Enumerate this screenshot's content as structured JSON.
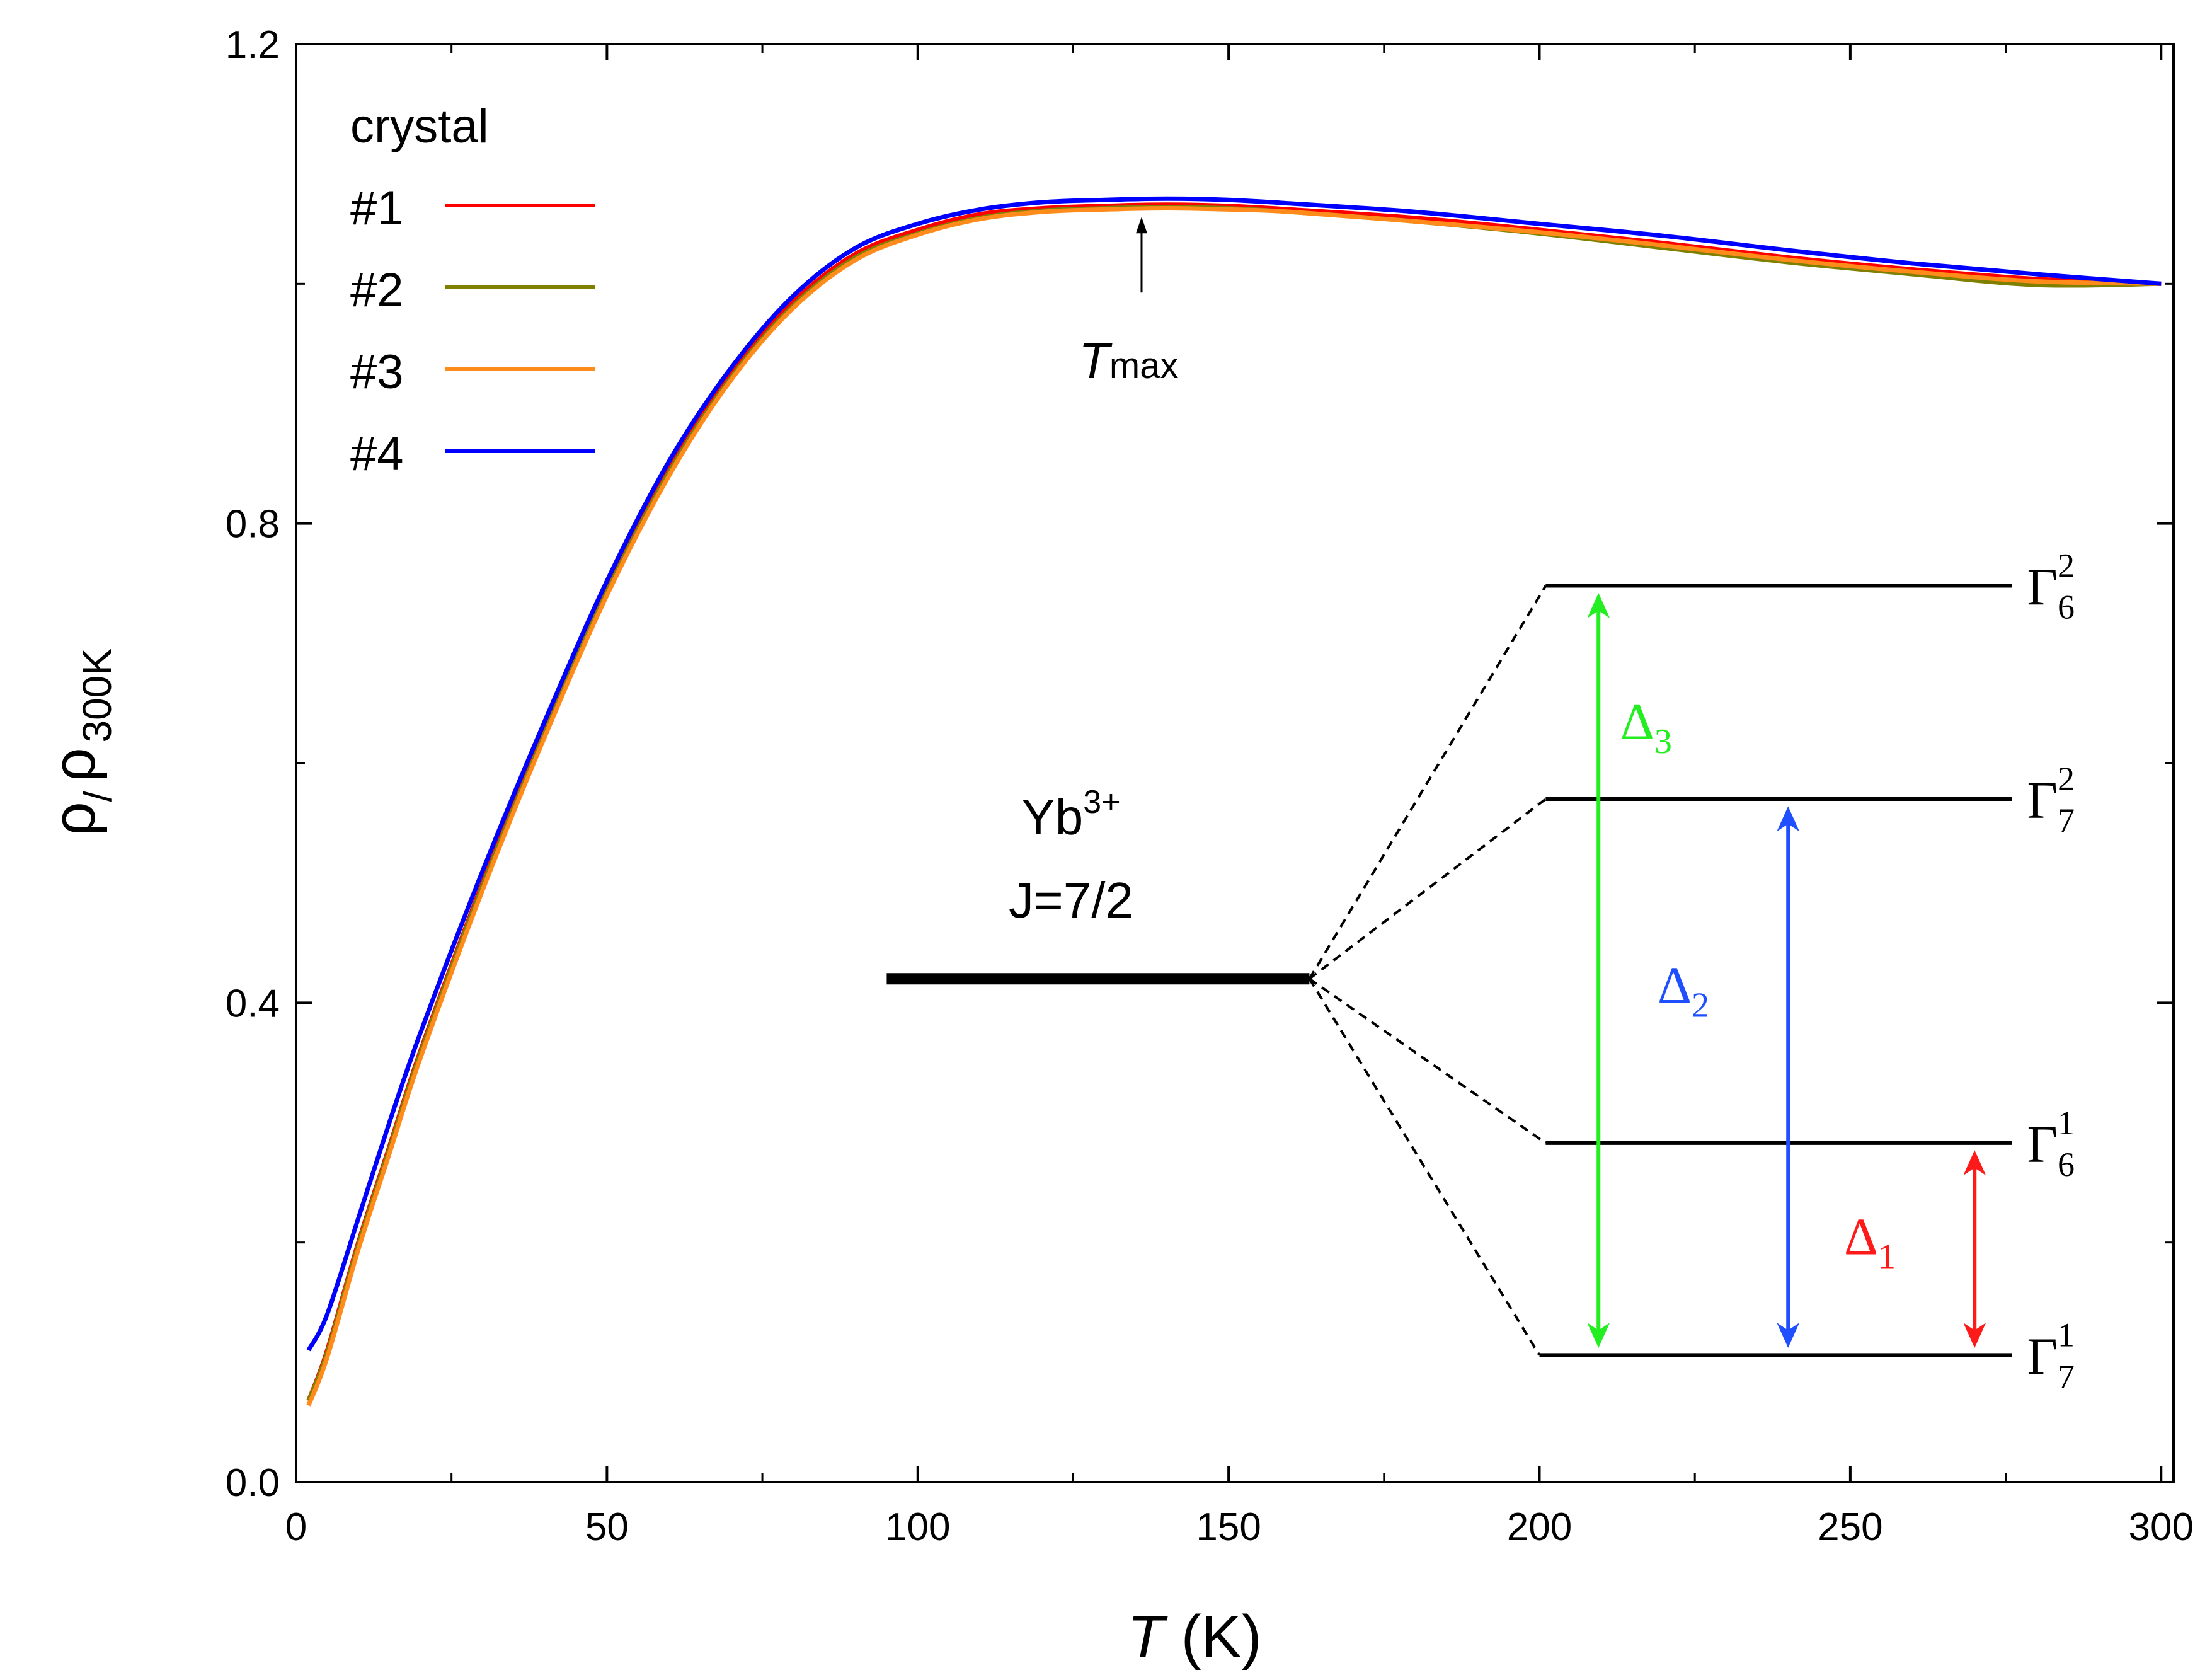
{
  "chart_data": {
    "type": "line",
    "title": "",
    "xlabel": {
      "italic": "T",
      "rest": " (K)"
    },
    "ylabel": {
      "rho": "ρ",
      "slash": "/",
      "rho2": "ρ",
      "sub": "300K"
    },
    "xlim": [
      0,
      302
    ],
    "ylim": [
      0.0,
      1.2
    ],
    "xticks": [
      0,
      50,
      100,
      150,
      200,
      250,
      300
    ],
    "xtick_labels": [
      "0",
      "50",
      "100",
      "150",
      "200",
      "250",
      "300"
    ],
    "yticks": [
      0.0,
      0.4,
      0.8,
      1.2
    ],
    "ytick_labels": [
      "0.0",
      "0.4",
      "0.8",
      "1.2"
    ],
    "legend": {
      "title": "crystal",
      "placement": "top-left",
      "entries": [
        "#1",
        "#2",
        "#3",
        "#4"
      ]
    },
    "x": [
      2,
      5,
      10,
      15,
      20,
      30,
      40,
      50,
      60,
      70,
      80,
      90,
      100,
      110,
      120,
      130,
      140,
      150,
      160,
      180,
      200,
      220,
      240,
      260,
      280,
      300
    ],
    "series": [
      {
        "name": "#1",
        "color": "#ff0000",
        "values": [
          0.068,
          0.11,
          0.2,
          0.28,
          0.36,
          0.5,
          0.627,
          0.745,
          0.845,
          0.925,
          0.985,
          1.025,
          1.045,
          1.058,
          1.063,
          1.065,
          1.066,
          1.065,
          1.062,
          1.055,
          1.045,
          1.034,
          1.022,
          1.012,
          1.004,
          1.0
        ]
      },
      {
        "name": "#2",
        "color": "#808000",
        "values": [
          0.068,
          0.108,
          0.198,
          0.278,
          0.358,
          0.498,
          0.625,
          0.743,
          0.843,
          0.922,
          0.982,
          1.022,
          1.042,
          1.055,
          1.061,
          1.063,
          1.064,
          1.063,
          1.06,
          1.052,
          1.042,
          1.03,
          1.018,
          1.008,
          0.999,
          1.0
        ]
      },
      {
        "name": "#3",
        "color": "#ff8c1a",
        "values": [
          0.064,
          0.104,
          0.194,
          0.274,
          0.354,
          0.494,
          0.622,
          0.74,
          0.84,
          0.92,
          0.98,
          1.02,
          1.041,
          1.054,
          1.06,
          1.062,
          1.063,
          1.062,
          1.06,
          1.052,
          1.043,
          1.032,
          1.02,
          1.01,
          1.002,
          1.0
        ]
      },
      {
        "name": "#4",
        "color": "#0000ff",
        "values": [
          0.11,
          0.14,
          0.22,
          0.3,
          0.375,
          0.51,
          0.635,
          0.752,
          0.852,
          0.93,
          0.99,
          1.03,
          1.05,
          1.062,
          1.068,
          1.07,
          1.071,
          1.07,
          1.067,
          1.06,
          1.05,
          1.04,
          1.028,
          1.017,
          1.008,
          1.0
        ]
      }
    ],
    "annotations": {
      "tmax": {
        "label_italic": "T",
        "label_sub": "max",
        "x": 136,
        "y": 1.06
      },
      "ion": {
        "line1_base": "Yb",
        "line1_sup": "3+",
        "line2": "J=7/2",
        "level_x": [
          95,
          163
        ],
        "level_y": 0.42
      },
      "levels": [
        {
          "name": "Γ",
          "sub": "6",
          "sup": "2",
          "y": 0.748,
          "x": [
            201,
            276
          ]
        },
        {
          "name": "Γ",
          "sub": "7",
          "sup": "2",
          "y": 0.57,
          "x": [
            201,
            276
          ]
        },
        {
          "name": "Γ",
          "sub": "6",
          "sup": "1",
          "y": 0.283,
          "x": [
            201,
            276
          ]
        },
        {
          "name": "Γ",
          "sub": "7",
          "sup": "1",
          "y": 0.106,
          "x": [
            200,
            276
          ]
        }
      ],
      "gaps": [
        {
          "name": "Δ",
          "sub": "3",
          "color": "#22ee22",
          "x": 209.5,
          "y_from": 0.112,
          "y_to": 0.742,
          "label_x": 213,
          "label_y": 0.62
        },
        {
          "name": "Δ",
          "sub": "2",
          "color": "#1f4fff",
          "x": 240,
          "y_from": 0.112,
          "y_to": 0.564,
          "label_x": 219,
          "label_y": 0.4
        },
        {
          "name": "Δ",
          "sub": "1",
          "color": "#ff1a1a",
          "x": 270,
          "y_from": 0.112,
          "y_to": 0.277,
          "label_x": 249,
          "label_y": 0.19
        }
      ]
    }
  }
}
